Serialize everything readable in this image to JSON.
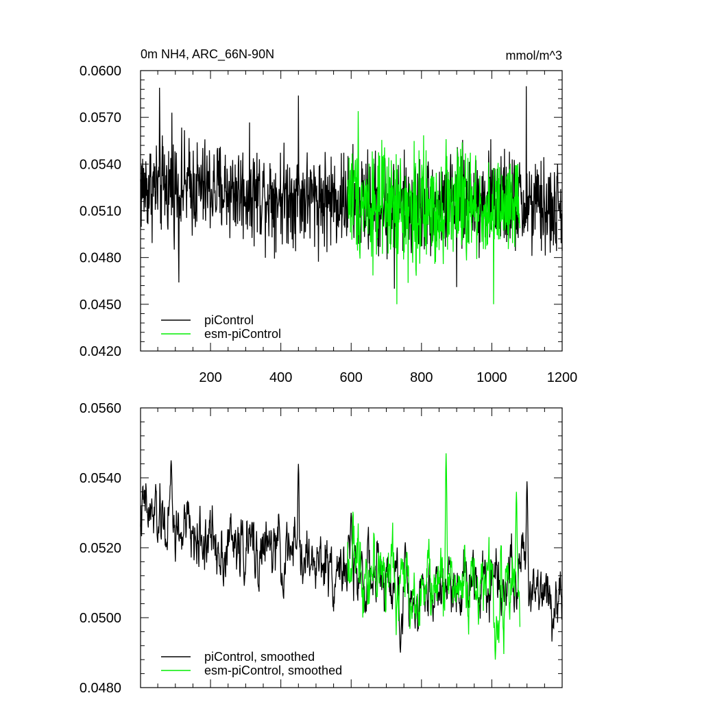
{
  "chart_data": [
    {
      "type": "line",
      "title": "0m NH4, ARC_66N-90N",
      "units": "mmol/m^3",
      "xlim": [
        1,
        1200
      ],
      "ylim": [
        0.042,
        0.06
      ],
      "x_ticks": [
        200,
        400,
        600,
        800,
        1000,
        1200
      ],
      "y_ticks": [
        "0.0420",
        "0.0450",
        "0.0480",
        "0.0510",
        "0.0540",
        "0.0570",
        "0.0600"
      ],
      "grid": false,
      "legend_position": "bottom-left",
      "series": [
        {
          "name": "piControl",
          "color": "#000000",
          "x_range": [
            1,
            1200
          ],
          "mean": 0.0518,
          "envelope": [
            [
              1,
              0.0525
            ],
            [
              100,
              0.0526
            ],
            [
              200,
              0.0524
            ],
            [
              300,
              0.0522
            ],
            [
              400,
              0.052
            ],
            [
              500,
              0.0518
            ],
            [
              600,
              0.0517
            ],
            [
              700,
              0.0513
            ],
            [
              800,
              0.0513
            ],
            [
              900,
              0.0515
            ],
            [
              1000,
              0.0519
            ],
            [
              1100,
              0.0513
            ],
            [
              1200,
              0.0509
            ]
          ],
          "spread": 0.0022,
          "extremes": [
            [
              55,
              0.0589
            ],
            [
              90,
              0.0573
            ],
            [
              110,
              0.0464
            ],
            [
              450,
              0.0584
            ],
            [
              723,
              0.046
            ],
            [
              900,
              0.0461
            ],
            [
              1098,
              0.059
            ]
          ]
        },
        {
          "name": "esm-piControl",
          "color": "#00ee00",
          "x_range": [
            590,
            1080
          ],
          "mean": 0.0513,
          "envelope": [
            [
              590,
              0.0522
            ],
            [
              700,
              0.0512
            ],
            [
              800,
              0.051
            ],
            [
              900,
              0.0514
            ],
            [
              1000,
              0.051
            ],
            [
              1080,
              0.0508
            ]
          ],
          "spread": 0.0026,
          "extremes": [
            [
              620,
              0.0574
            ],
            [
              730,
              0.045
            ],
            [
              870,
              0.0556
            ],
            [
              1005,
              0.045
            ]
          ]
        }
      ]
    },
    {
      "type": "line",
      "xlim": [
        1,
        1200
      ],
      "ylim": [
        0.048,
        0.056
      ],
      "y_ticks": [
        "0.0480",
        "0.0500",
        "0.0520",
        "0.0540",
        "0.0560"
      ],
      "grid": false,
      "legend_position": "bottom-left",
      "series": [
        {
          "name": "piControl, smoothed",
          "color": "#000000",
          "x_range": [
            1,
            1200
          ],
          "envelope": [
            [
              1,
              0.053
            ],
            [
              100,
              0.0525
            ],
            [
              200,
              0.0522
            ],
            [
              300,
              0.052
            ],
            [
              400,
              0.0518
            ],
            [
              500,
              0.0516
            ],
            [
              600,
              0.0514
            ],
            [
              700,
              0.051
            ],
            [
              800,
              0.0507
            ],
            [
              900,
              0.0511
            ],
            [
              1000,
              0.0513
            ],
            [
              1100,
              0.0512
            ],
            [
              1200,
              0.0506
            ]
          ],
          "spread": 0.0009,
          "extremes": [
            [
              88,
              0.0545
            ],
            [
              450,
              0.0544
            ],
            [
              600,
              0.053
            ],
            [
              740,
              0.049
            ],
            [
              1100,
              0.0539
            ]
          ]
        },
        {
          "name": "esm-piControl, smoothed",
          "color": "#00ee00",
          "x_range": [
            590,
            1080
          ],
          "envelope": [
            [
              590,
              0.0518
            ],
            [
              700,
              0.0512
            ],
            [
              800,
              0.0508
            ],
            [
              900,
              0.051
            ],
            [
              1000,
              0.051
            ],
            [
              1080,
              0.0506
            ]
          ],
          "spread": 0.001,
          "extremes": [
            [
              870,
              0.0547
            ],
            [
              1010,
              0.0488
            ],
            [
              1070,
              0.0536
            ]
          ]
        }
      ]
    }
  ]
}
